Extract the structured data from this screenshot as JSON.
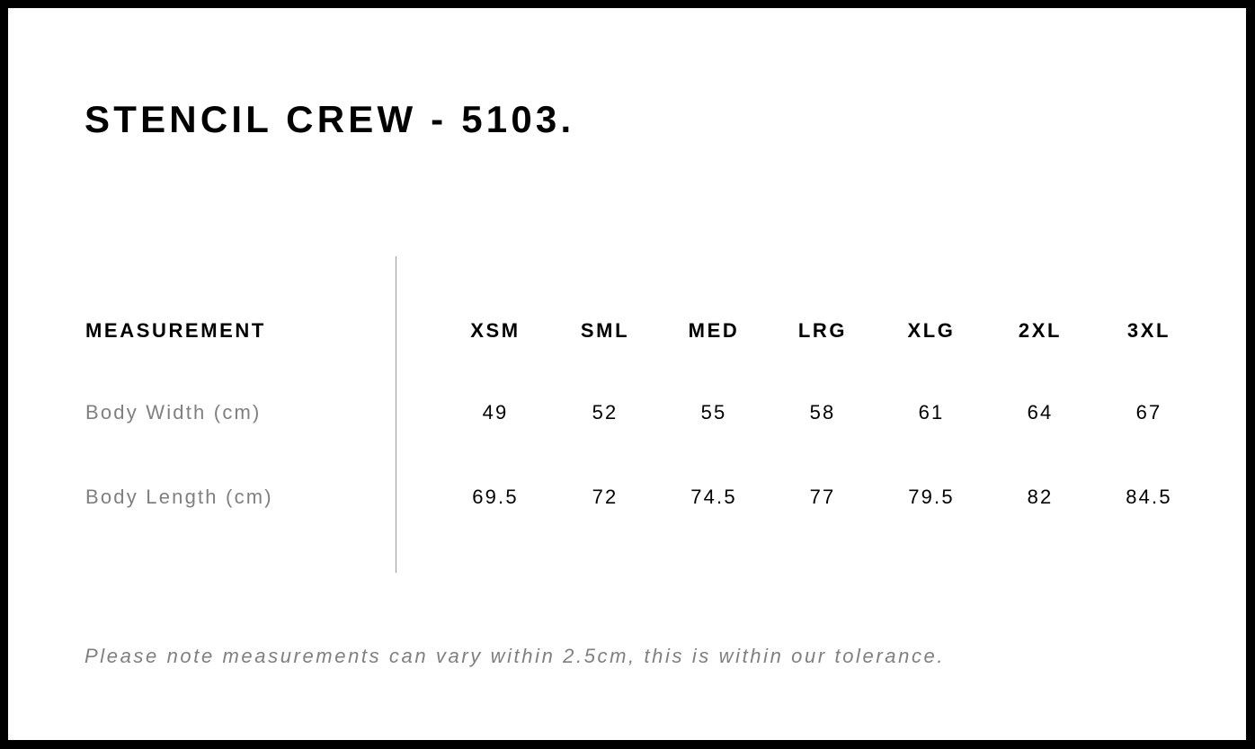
{
  "title": "STENCIL CREW - 5103.",
  "table": {
    "header_label": "MEASUREMENT",
    "sizes": [
      "XSM",
      "SML",
      "MED",
      "LRG",
      "XLG",
      "2XL",
      "3XL"
    ],
    "rows": [
      {
        "label": "Body Width (cm)",
        "values": [
          "49",
          "52",
          "55",
          "58",
          "61",
          "64",
          "67"
        ]
      },
      {
        "label": "Body Length (cm)",
        "values": [
          "69.5",
          "72",
          "74.5",
          "77",
          "79.5",
          "82",
          "84.5"
        ]
      }
    ]
  },
  "note": "Please note measurements can vary within 2.5cm, this is within our tolerance."
}
